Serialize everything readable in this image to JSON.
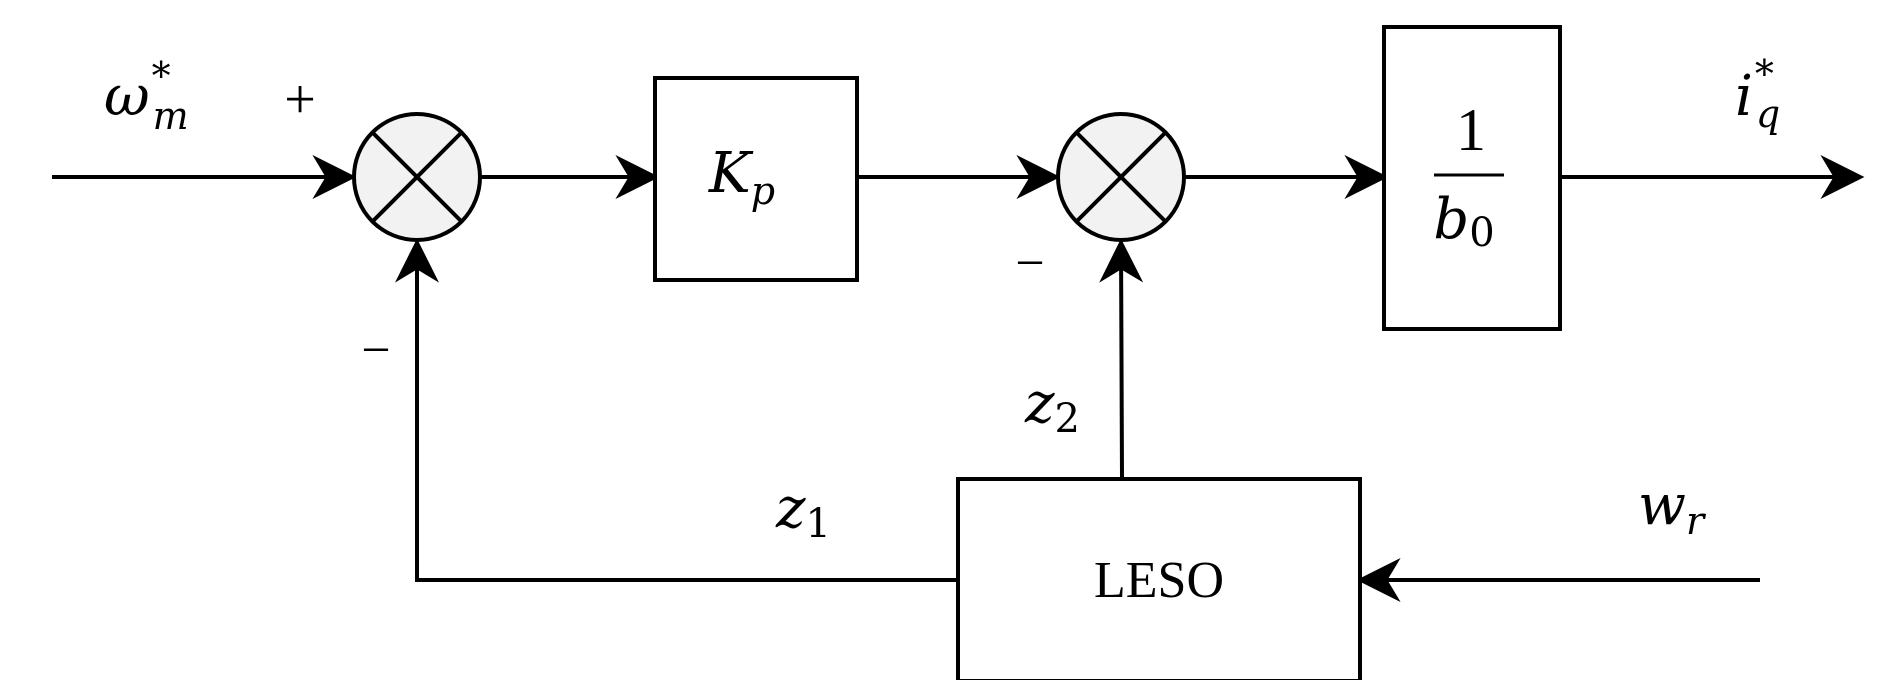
{
  "signals": {
    "input": "ω",
    "input_sub": "m",
    "input_sup": "*",
    "output": "i",
    "output_sub": "q",
    "output_sup": "*",
    "z1": "z",
    "z1_sub": "1",
    "z2": "z",
    "z2_sub": "2",
    "wr": "w",
    "wr_sub": "r"
  },
  "signs": {
    "sum1_plus": "+",
    "sum1_minus": "−",
    "sum2_minus": "−"
  },
  "blocks": {
    "gain": "K",
    "gain_sub": "p",
    "inverse_num": "1",
    "inverse_den": "b",
    "inverse_den_sub": "0",
    "observer": "LESO"
  }
}
